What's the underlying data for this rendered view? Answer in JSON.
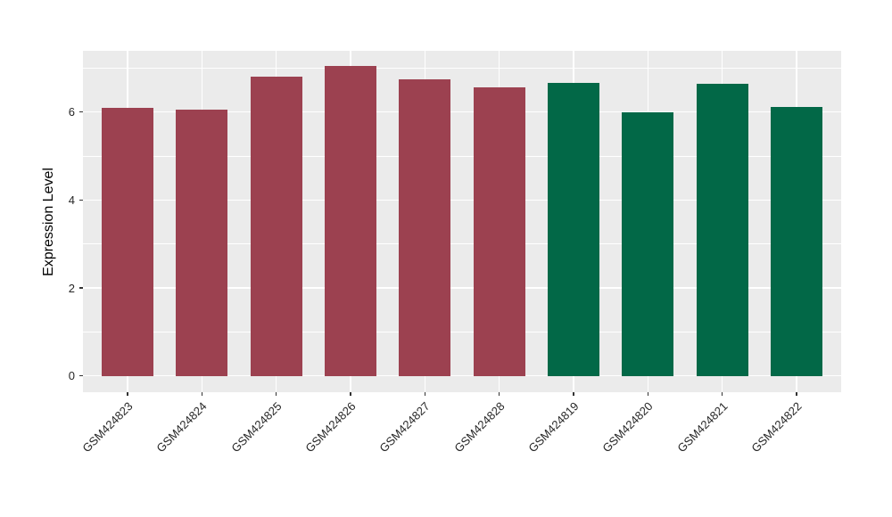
{
  "figure": {
    "background": "#FFFFFF",
    "colors": {
      "panel_background": "#EBEBEB",
      "grid": "#FFFFFF",
      "axis_text": "#262626",
      "tick_mark": "#333333",
      "axis_title": "#000000",
      "bar_red": "#9C4150",
      "bar_green": "#026847"
    }
  },
  "chart_data": {
    "type": "bar",
    "title": "",
    "xlabel": "",
    "ylabel": "Expression Level",
    "categories": [
      "GSM424823",
      "GSM424824",
      "GSM424825",
      "GSM424826",
      "GSM424827",
      "GSM424828",
      "GSM424819",
      "GSM424820",
      "GSM424821",
      "GSM424822"
    ],
    "values": [
      6.1,
      6.06,
      6.81,
      7.04,
      6.74,
      6.55,
      6.67,
      5.99,
      6.64,
      6.12
    ],
    "bar_colors": [
      "#9C4150",
      "#9C4150",
      "#9C4150",
      "#9C4150",
      "#9C4150",
      "#9C4150",
      "#026847",
      "#026847",
      "#026847",
      "#026847"
    ],
    "yticks": [
      0,
      2,
      4,
      6
    ],
    "yticks_minor": [
      1,
      3,
      5,
      7
    ],
    "ylim": [
      -0.37,
      7.39
    ],
    "bar_rel_width": 0.7,
    "grid": "on",
    "legend_position": "none",
    "x_label_angle_deg": 45
  }
}
